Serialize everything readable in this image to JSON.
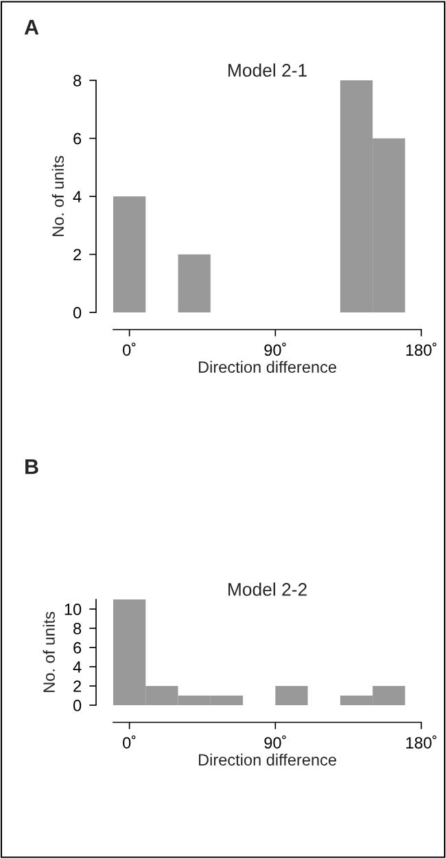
{
  "chart_data": [
    {
      "type": "histogram",
      "title": "Model 2-1",
      "xlabel": "Direction difference",
      "ylabel": "No. of units",
      "annotations": [
        "A"
      ],
      "bins": [
        -10,
        10,
        30,
        50,
        70,
        90,
        110,
        130,
        150,
        170
      ],
      "values": [
        4,
        0,
        2,
        0,
        0,
        0,
        0,
        8,
        6
      ],
      "color": "#999999",
      "xlim": [
        -10,
        180
      ],
      "xticks": [
        {
          "value": 0,
          "label": "0˚"
        },
        {
          "value": 90,
          "label": "90˚"
        },
        {
          "value": 180,
          "label": "180˚"
        }
      ],
      "ylim": [
        0,
        8
      ],
      "yticks": [
        0,
        2,
        4,
        6,
        8
      ],
      "grid": false
    },
    {
      "type": "histogram",
      "title": "Model 2-2",
      "xlabel": "Direction difference",
      "ylabel": "No. of units",
      "annotations": [
        "B"
      ],
      "bins": [
        -10,
        10,
        30,
        50,
        70,
        90,
        110,
        130,
        150,
        170
      ],
      "values": [
        11,
        2,
        1,
        1,
        0,
        2,
        0,
        1,
        2
      ],
      "color": "#999999",
      "xlim": [
        -10,
        180
      ],
      "xticks": [
        {
          "value": 0,
          "label": "0˚"
        },
        {
          "value": 90,
          "label": "90˚"
        },
        {
          "value": 180,
          "label": "180˚"
        }
      ],
      "ylim": [
        0,
        11
      ],
      "yticks": [
        0,
        2,
        4,
        6,
        8,
        10
      ],
      "grid": false
    }
  ]
}
